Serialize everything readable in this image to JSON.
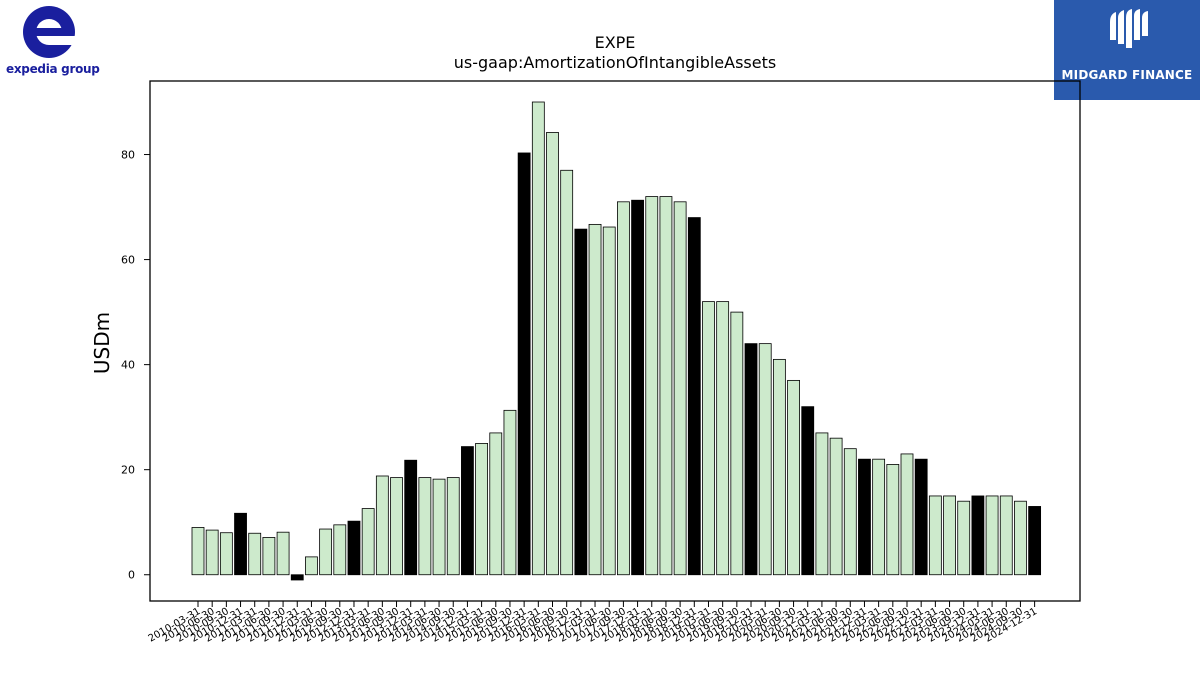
{
  "header": {
    "brand_left": "expedia group",
    "brand_right": "MIDGARD FINANCE"
  },
  "colors": {
    "bar_light": "#cdeacc",
    "bar_dark": "#000000",
    "brand_left": "#1a1f9e",
    "brand_right_bg": "#2a5aad"
  },
  "chart_data": {
    "type": "bar",
    "title": "EXPE",
    "subtitle": "us-gaap:AmortizationOfIntangibleAssets",
    "xlabel": "",
    "ylabel": "USDm",
    "ylim": [
      -5,
      94
    ],
    "yticks": [
      0,
      20,
      40,
      60,
      80
    ],
    "grid": false,
    "legend": "none",
    "categories": [
      "2010-03-31",
      "2010-06-30",
      "2010-09-30",
      "2010-12-31",
      "2011-03-31",
      "2011-06-30",
      "2011-09-30",
      "2011-12-31",
      "2012-03-31",
      "2012-06-30",
      "2012-09-30",
      "2012-12-31",
      "2013-03-31",
      "2013-06-30",
      "2013-09-30",
      "2013-12-31",
      "2014-03-31",
      "2014-06-30",
      "2014-09-30",
      "2014-12-31",
      "2015-03-31",
      "2015-06-30",
      "2015-09-30",
      "2015-12-31",
      "2016-03-31",
      "2016-06-30",
      "2016-09-30",
      "2016-12-31",
      "2017-03-31",
      "2017-06-30",
      "2017-09-30",
      "2017-12-31",
      "2018-03-31",
      "2018-06-30",
      "2018-09-30",
      "2018-12-31",
      "2019-03-31",
      "2019-06-30",
      "2019-09-30",
      "2019-12-31",
      "2020-03-31",
      "2020-06-30",
      "2020-09-30",
      "2020-12-31",
      "2021-03-31",
      "2021-06-30",
      "2021-09-30",
      "2021-12-31",
      "2022-03-31",
      "2022-06-30",
      "2022-09-30",
      "2022-12-31",
      "2023-03-31",
      "2023-06-30",
      "2023-09-30",
      "2023-12-31",
      "2024-03-31",
      "2024-06-30",
      "2024-09-30",
      "2024-12-31"
    ],
    "values": [
      9,
      8.5,
      8,
      11.7,
      7.9,
      7.1,
      8.1,
      -1,
      3.4,
      8.7,
      9.5,
      10.2,
      12.6,
      18.8,
      18.5,
      21.8,
      18.5,
      18.2,
      18.5,
      24.4,
      25,
      27,
      31.3,
      80.3,
      90,
      84.2,
      77,
      65.8,
      66.7,
      66.2,
      71,
      71.3,
      72,
      72,
      71,
      68,
      52,
      52,
      50,
      44,
      44,
      41,
      37,
      32,
      27,
      26,
      24,
      22,
      22,
      21,
      23,
      22,
      15,
      15,
      14,
      15,
      15,
      15,
      14,
      13
    ],
    "highlight": [
      false,
      false,
      false,
      true,
      false,
      false,
      false,
      true,
      false,
      false,
      false,
      true,
      false,
      false,
      false,
      true,
      false,
      false,
      false,
      true,
      false,
      false,
      false,
      true,
      false,
      false,
      false,
      true,
      false,
      false,
      false,
      true,
      false,
      false,
      false,
      true,
      false,
      false,
      false,
      true,
      false,
      false,
      false,
      true,
      false,
      false,
      false,
      true,
      false,
      false,
      false,
      true,
      false,
      false,
      false,
      true,
      false,
      false,
      false,
      true
    ]
  }
}
